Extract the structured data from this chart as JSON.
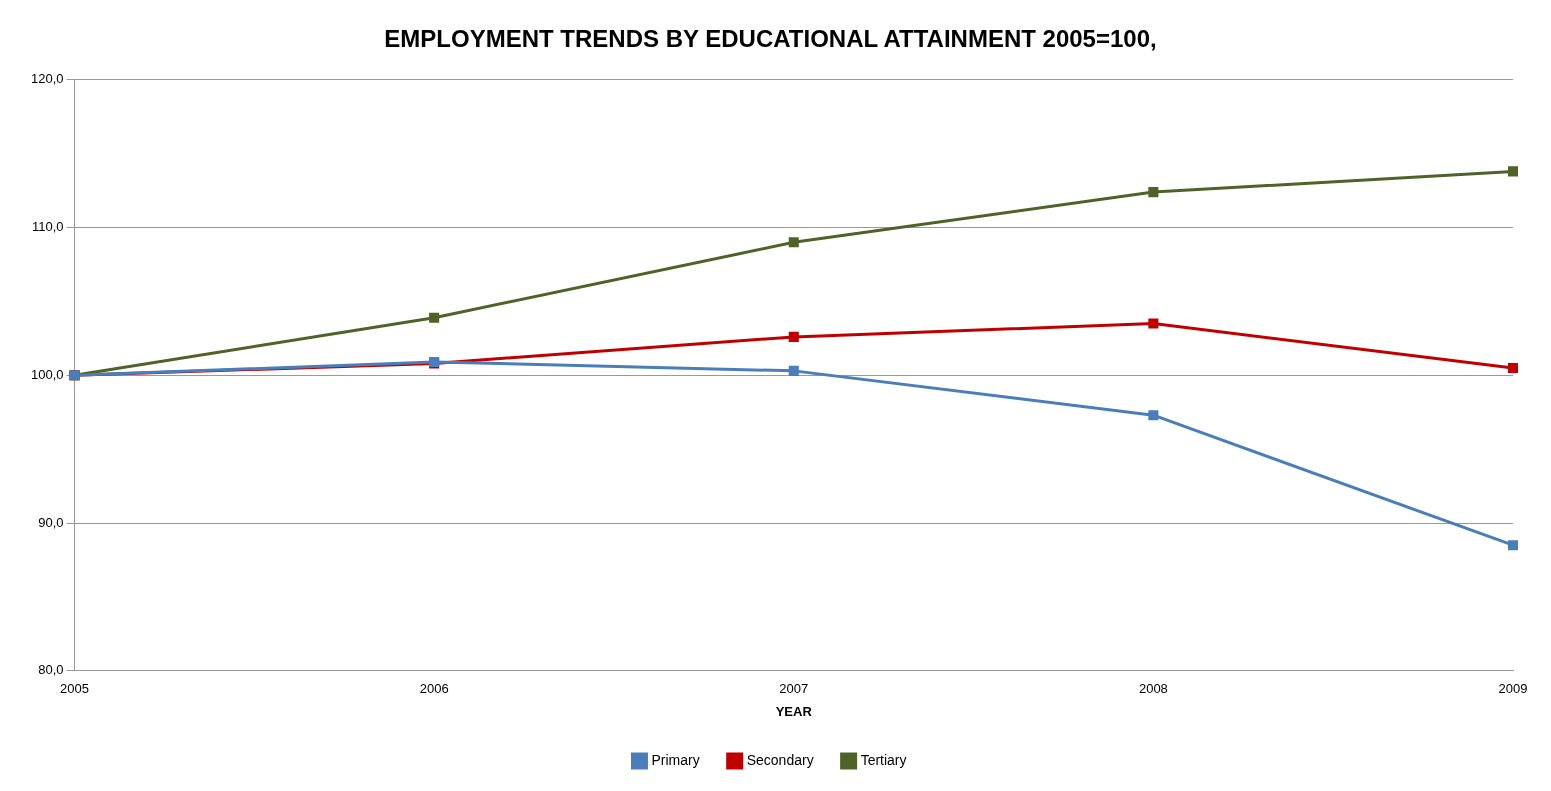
{
  "chart_data": {
    "type": "line",
    "title": "EMPLOYMENT TRENDS BY EDUCATIONAL ATTAINMENT 2005=100,",
    "xlabel": "YEAR",
    "categories": [
      "2005",
      "2006",
      "2007",
      "2008",
      "2009"
    ],
    "series": [
      {
        "name": "Primary",
        "color": "#4a7ebb",
        "values": [
          100,
          100.9,
          100.3,
          97.3,
          88.5
        ]
      },
      {
        "name": "Secondary",
        "color": "#c00000",
        "values": [
          100,
          100.8,
          102.6,
          103.5,
          100.5
        ]
      },
      {
        "name": "Tertiary",
        "color": "#4f6228",
        "values": [
          100,
          103.9,
          109.0,
          112.4,
          113.8
        ]
      }
    ],
    "ylim": [
      80,
      120
    ],
    "yticks": [
      {
        "value": 80,
        "label": "80,0"
      },
      {
        "value": 90,
        "label": "90,0"
      },
      {
        "value": 100,
        "label": "100,0"
      },
      {
        "value": 110,
        "label": "110,0"
      },
      {
        "value": 120,
        "label": "120,0"
      }
    ],
    "grid": "y",
    "legend": "bottom",
    "marker": "square",
    "line_style": "solid"
  }
}
